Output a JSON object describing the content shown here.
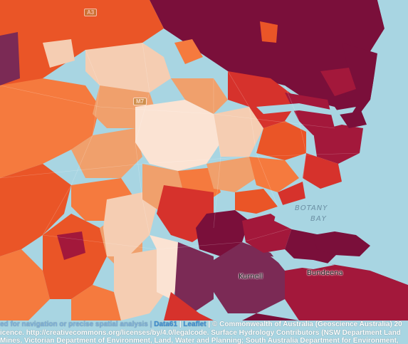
{
  "map": {
    "water_label": "BOTANY BAY",
    "water_label_lines": [
      "BOTANY",
      "BAY"
    ],
    "place_labels": [
      "Kurnell",
      "Bundeena"
    ],
    "road_shields": [
      "A3",
      "M7"
    ],
    "colors": {
      "water": "#a8d5e2",
      "darkest": "#7a0f3a",
      "dark": "#a3183b",
      "red": "#d6322c",
      "orange_red": "#ea5527",
      "orange": "#f57a3e",
      "light_orange": "#f0a06c",
      "pale": "#f5cdb2",
      "very_pale": "#fbe3d3",
      "purple": "#7b2a55"
    }
  },
  "attribution": {
    "line1_faded": "ed for navigation or precise spatial analysis",
    "line1_data61": "Data61",
    "line1_leaflet": "Leaflet",
    "line1_rest": "| © Commonwealth of Australia (Geoscience Australia) 20",
    "line2": "icence. http://creativecommons.org/licenses/by/4.0/legalcode. Surface Hydrology Contributors (NSW Department Land",
    "line3": "Mines, Victorian Department of Environment, Land, Water and Planning; South Australia Department for Environment,"
  }
}
